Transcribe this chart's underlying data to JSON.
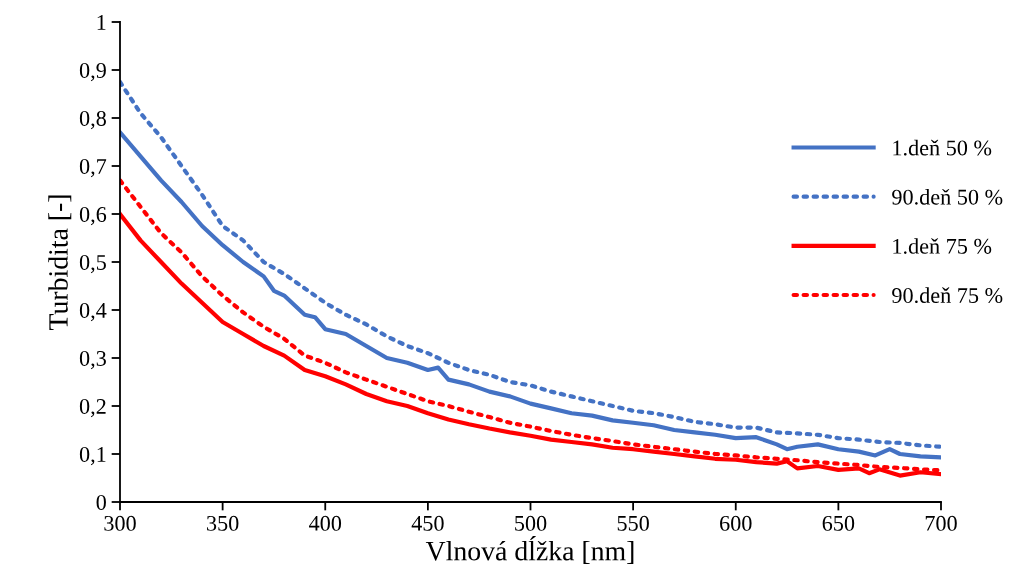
{
  "chart_data": {
    "type": "line",
    "xlabel": "Vlnová dĺžka [nm]",
    "ylabel": "Turbidita [-]",
    "xlim": [
      300,
      700
    ],
    "xticks": [
      300,
      350,
      400,
      450,
      500,
      550,
      600,
      650,
      700
    ],
    "ylim": [
      0,
      1
    ],
    "yticks": [
      0,
      {
        "value": 0.1,
        "label": "0,1"
      },
      {
        "value": 0.2,
        "label": "0,2"
      },
      {
        "value": 0.3,
        "label": "0,3"
      },
      {
        "value": 0.4,
        "label": "0,4"
      },
      {
        "value": 0.5,
        "label": "0,5"
      },
      {
        "value": 0.6,
        "label": "0,6"
      },
      {
        "value": 0.7,
        "label": "0,7"
      },
      {
        "value": 0.8,
        "label": "0,8"
      },
      {
        "value": 0.9,
        "label": "0,9"
      },
      1
    ],
    "grid": false,
    "legend": "right",
    "marker": "none",
    "series": [
      {
        "name": "1.deň 50 %",
        "color": "#4472c4",
        "line_style": "solid",
        "x": [
          300,
          310,
          320,
          330,
          340,
          350,
          360,
          370,
          375,
          380,
          390,
          395,
          400,
          410,
          420,
          430,
          440,
          450,
          455,
          460,
          470,
          480,
          490,
          500,
          510,
          520,
          530,
          540,
          550,
          560,
          570,
          580,
          590,
          600,
          610,
          620,
          625,
          630,
          640,
          650,
          660,
          668,
          675,
          680,
          690,
          700
        ],
        "values": [
          0.77,
          0.72,
          0.67,
          0.625,
          0.575,
          0.535,
          0.5,
          0.47,
          0.44,
          0.43,
          0.39,
          0.385,
          0.36,
          0.35,
          0.325,
          0.3,
          0.29,
          0.275,
          0.28,
          0.255,
          0.245,
          0.23,
          0.22,
          0.205,
          0.195,
          0.185,
          0.18,
          0.17,
          0.165,
          0.16,
          0.15,
          0.145,
          0.14,
          0.133,
          0.135,
          0.12,
          0.11,
          0.115,
          0.12,
          0.11,
          0.105,
          0.097,
          0.11,
          0.1,
          0.095,
          0.093
        ]
      },
      {
        "name": "90.deň 50 %",
        "color": "#4472c4",
        "line_style": "dotted",
        "x": [
          300,
          310,
          320,
          330,
          340,
          350,
          360,
          370,
          380,
          390,
          400,
          410,
          420,
          430,
          440,
          450,
          460,
          470,
          480,
          490,
          500,
          510,
          520,
          530,
          540,
          550,
          560,
          570,
          580,
          590,
          600,
          610,
          620,
          630,
          640,
          650,
          660,
          670,
          680,
          690,
          700
        ],
        "values": [
          0.875,
          0.81,
          0.76,
          0.7,
          0.64,
          0.575,
          0.545,
          0.5,
          0.475,
          0.445,
          0.415,
          0.39,
          0.37,
          0.345,
          0.325,
          0.31,
          0.29,
          0.275,
          0.265,
          0.25,
          0.243,
          0.23,
          0.22,
          0.21,
          0.2,
          0.19,
          0.185,
          0.177,
          0.167,
          0.162,
          0.155,
          0.155,
          0.145,
          0.143,
          0.14,
          0.133,
          0.13,
          0.125,
          0.123,
          0.118,
          0.115
        ]
      },
      {
        "name": "1.deň 75 %",
        "color": "#ff0000",
        "line_style": "solid",
        "x": [
          300,
          310,
          320,
          330,
          340,
          350,
          360,
          370,
          380,
          390,
          400,
          410,
          420,
          430,
          440,
          450,
          460,
          470,
          480,
          490,
          500,
          510,
          520,
          530,
          540,
          550,
          560,
          570,
          580,
          590,
          600,
          610,
          620,
          625,
          630,
          640,
          650,
          660,
          665,
          670,
          680,
          690,
          700
        ],
        "values": [
          0.6,
          0.545,
          0.5,
          0.455,
          0.415,
          0.375,
          0.35,
          0.325,
          0.305,
          0.275,
          0.262,
          0.245,
          0.225,
          0.21,
          0.2,
          0.185,
          0.172,
          0.162,
          0.153,
          0.145,
          0.138,
          0.13,
          0.125,
          0.12,
          0.113,
          0.11,
          0.105,
          0.1,
          0.095,
          0.09,
          0.088,
          0.083,
          0.08,
          0.085,
          0.07,
          0.075,
          0.067,
          0.07,
          0.06,
          0.068,
          0.055,
          0.062,
          0.058
        ]
      },
      {
        "name": "90.deň 75 %",
        "color": "#ff0000",
        "line_style": "dotted",
        "x": [
          300,
          310,
          320,
          330,
          340,
          350,
          360,
          370,
          380,
          390,
          400,
          410,
          420,
          430,
          440,
          450,
          460,
          470,
          480,
          490,
          500,
          510,
          520,
          530,
          540,
          550,
          560,
          570,
          580,
          590,
          600,
          610,
          620,
          630,
          640,
          650,
          660,
          670,
          680,
          690,
          700
        ],
        "values": [
          0.67,
          0.615,
          0.56,
          0.52,
          0.47,
          0.43,
          0.395,
          0.365,
          0.34,
          0.305,
          0.29,
          0.27,
          0.255,
          0.24,
          0.225,
          0.21,
          0.2,
          0.188,
          0.177,
          0.165,
          0.157,
          0.148,
          0.14,
          0.133,
          0.127,
          0.12,
          0.115,
          0.11,
          0.105,
          0.1,
          0.097,
          0.093,
          0.09,
          0.087,
          0.083,
          0.08,
          0.077,
          0.073,
          0.071,
          0.068,
          0.066
        ]
      }
    ]
  }
}
